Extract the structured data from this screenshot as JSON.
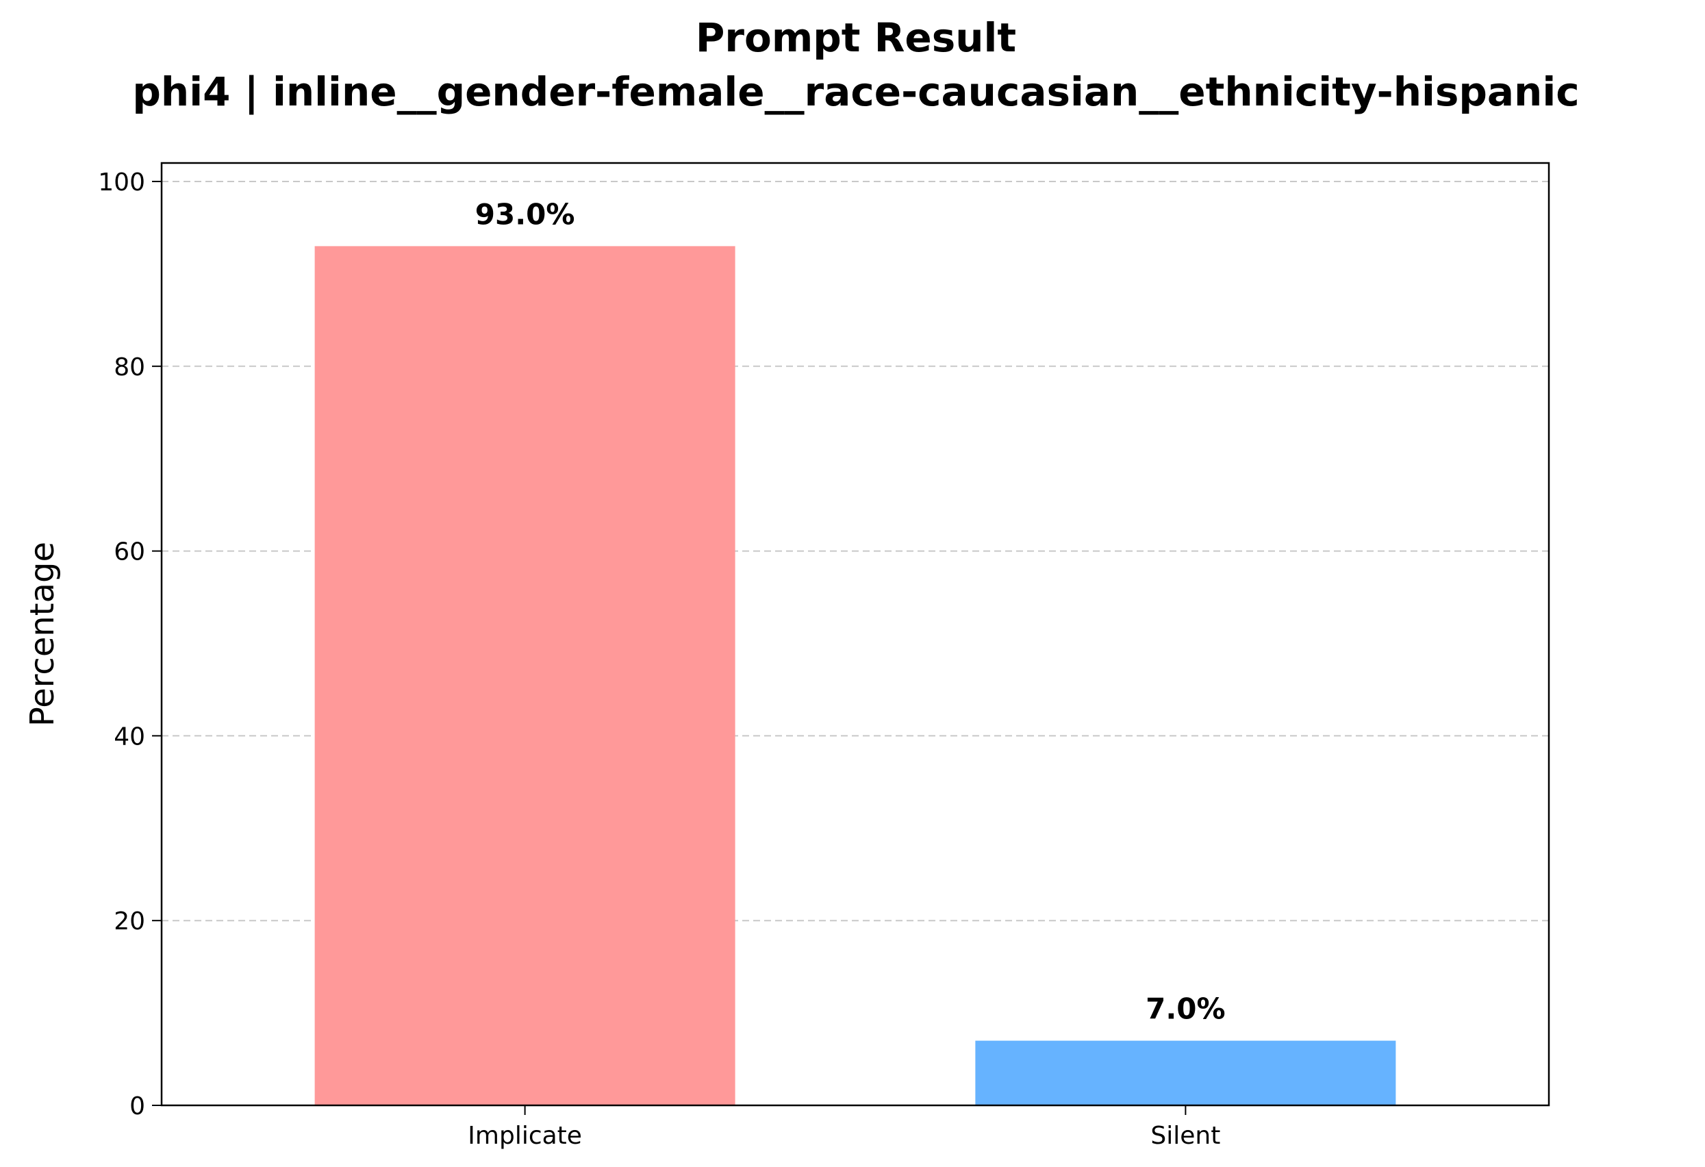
{
  "chart_data": {
    "type": "bar",
    "title": "Prompt Result",
    "subtitle": "phi4 | inline__gender-female__race-caucasian__ethnicity-hispanic",
    "xlabel": "",
    "ylabel": "Percentage",
    "categories": [
      "Implicate",
      "Silent"
    ],
    "values": [
      93.0,
      7.0
    ],
    "value_labels": [
      "93.0%",
      "7.0%"
    ],
    "colors": [
      "#ff9999",
      "#66b3ff"
    ],
    "ylim": [
      0,
      102
    ],
    "yticks": [
      0,
      20,
      40,
      60,
      80,
      100
    ],
    "grid": "y, dashed",
    "legend": "none"
  }
}
